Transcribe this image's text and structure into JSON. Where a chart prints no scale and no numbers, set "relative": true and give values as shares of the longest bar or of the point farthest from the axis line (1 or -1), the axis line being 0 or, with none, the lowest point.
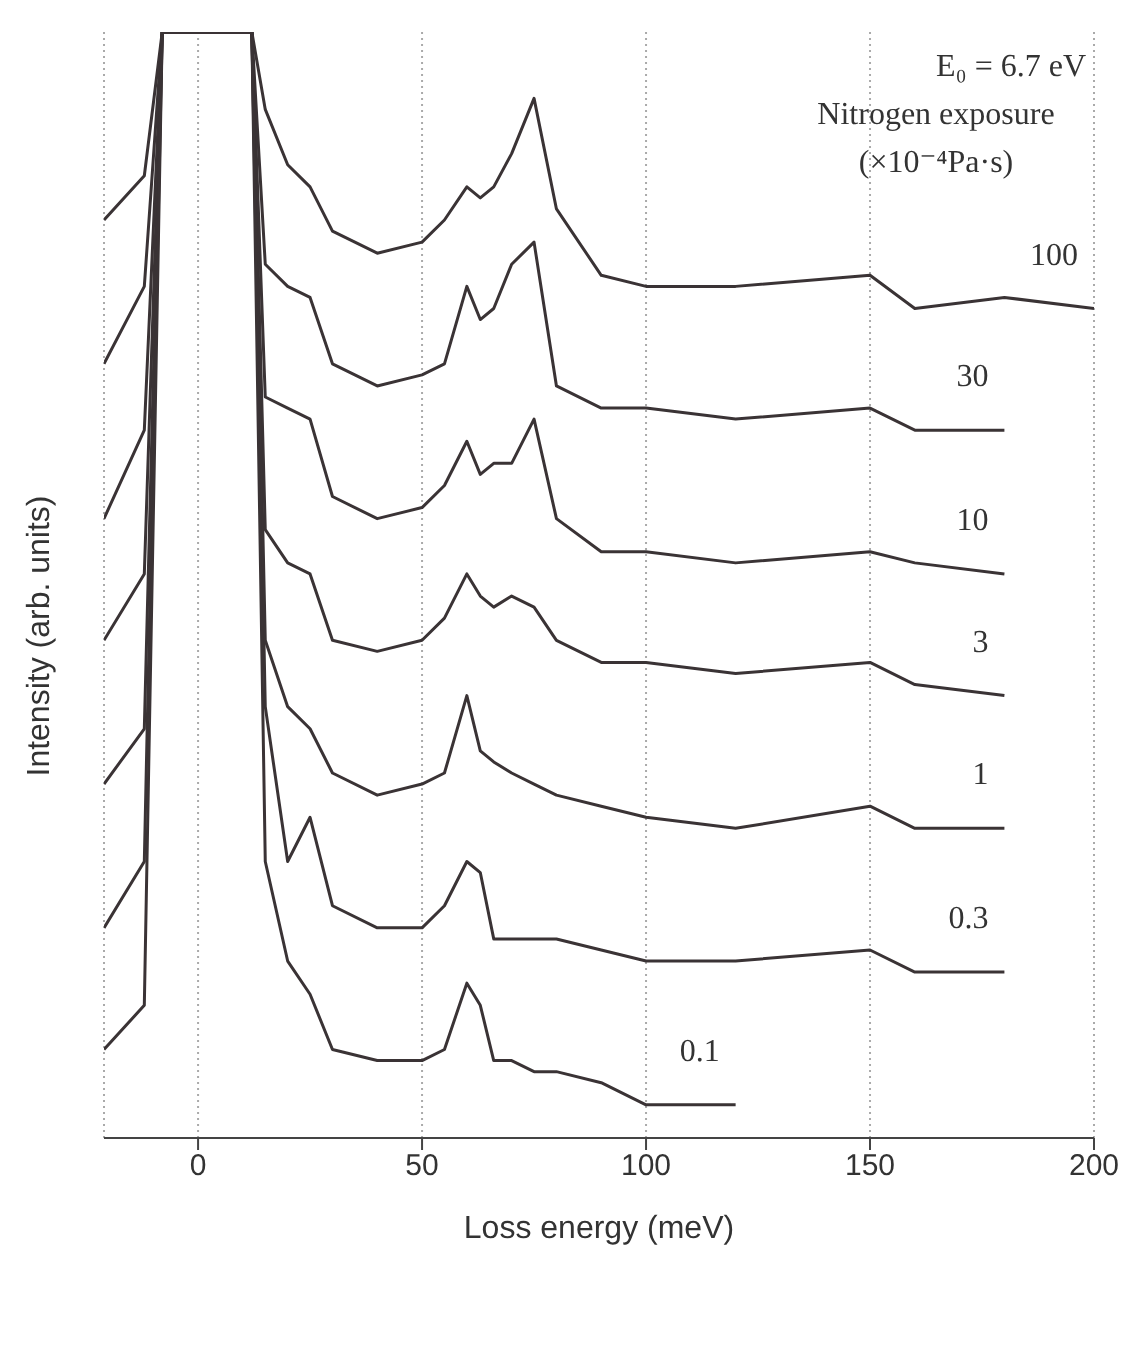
{
  "chart_data": {
    "type": "line",
    "xlabel": "Loss energy (meV)",
    "ylabel": "Intensity (arb. units)",
    "legend_title": "Nitrogen exposure (×10⁻⁴Pa·s)",
    "annotations": [
      "E₀ = 6.7 eV"
    ],
    "relative": true,
    "grid": "x",
    "marker": "none",
    "line_style": "solid",
    "xlim": [
      -21,
      200
    ],
    "xticks": [
      0,
      50,
      100,
      150,
      200
    ],
    "x": [
      -21,
      -12,
      -8,
      12,
      15,
      20,
      25,
      30,
      40,
      50,
      55,
      60,
      63,
      66,
      70,
      75,
      80,
      90,
      100,
      120,
      150,
      160,
      180,
      200
    ],
    "series": [
      {
        "name": "100",
        "color": "#3a3335",
        "values": [
          0.83,
          0.87,
          1,
          1,
          0.93,
          0.88,
          0.86,
          0.82,
          0.8,
          0.81,
          0.83,
          0.86,
          0.85,
          0.86,
          0.89,
          0.94,
          0.84,
          0.78,
          0.77,
          0.77,
          0.78,
          0.75,
          0.76,
          0.75
        ]
      },
      {
        "name": "30",
        "color": "#3a3335",
        "values": [
          0.7,
          0.77,
          1,
          1,
          0.79,
          0.77,
          0.76,
          0.7,
          0.68,
          0.69,
          0.7,
          0.77,
          0.74,
          0.75,
          0.79,
          0.81,
          0.68,
          0.66,
          0.66,
          0.65,
          0.66,
          0.64,
          0.64,
          null
        ]
      },
      {
        "name": "10",
        "color": "#3a3335",
        "values": [
          0.56,
          0.64,
          1,
          1,
          0.67,
          0.66,
          0.65,
          0.58,
          0.56,
          0.57,
          0.59,
          0.63,
          0.6,
          0.61,
          0.61,
          0.65,
          0.56,
          0.53,
          0.53,
          0.52,
          0.53,
          0.52,
          0.51,
          null
        ]
      },
      {
        "name": "3",
        "color": "#3a3335",
        "values": [
          0.45,
          0.51,
          1,
          1,
          0.55,
          0.52,
          0.51,
          0.45,
          0.44,
          0.45,
          0.47,
          0.51,
          0.49,
          0.48,
          0.49,
          0.48,
          0.45,
          0.43,
          0.43,
          0.42,
          0.43,
          0.41,
          0.4,
          null
        ]
      },
      {
        "name": "1",
        "color": "#3a3335",
        "values": [
          0.32,
          0.37,
          1,
          1,
          0.45,
          0.39,
          0.37,
          0.33,
          0.31,
          0.32,
          0.33,
          0.4,
          0.35,
          0.34,
          0.33,
          0.32,
          0.31,
          0.3,
          0.29,
          0.28,
          0.3,
          0.28,
          0.28,
          null
        ]
      },
      {
        "name": "0.3",
        "color": "#3a3335",
        "values": [
          0.19,
          0.25,
          1,
          1,
          0.39,
          0.25,
          0.29,
          0.21,
          0.19,
          0.19,
          0.21,
          0.25,
          0.24,
          0.18,
          0.18,
          0.18,
          0.18,
          0.17,
          0.16,
          0.16,
          0.17,
          0.15,
          0.15,
          null
        ]
      },
      {
        "name": "0.1",
        "color": "#3a3335",
        "values": [
          0.08,
          0.12,
          1,
          1,
          0.25,
          0.16,
          0.13,
          0.08,
          0.07,
          0.07,
          0.08,
          0.14,
          0.12,
          0.07,
          0.07,
          0.06,
          0.06,
          0.05,
          0.03,
          0.03,
          null,
          null,
          null,
          null
        ]
      }
    ]
  }
}
